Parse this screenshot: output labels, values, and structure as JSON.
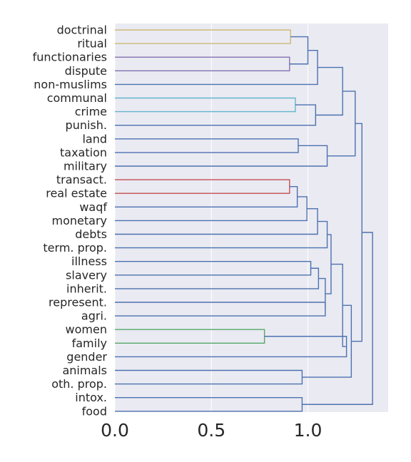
{
  "chart_data": {
    "type": "dendrogram",
    "orientation": "horizontal",
    "title": "",
    "xlabel": "",
    "ylabel": "",
    "xlim": [
      0,
      1.4
    ],
    "xticks": [
      {
        "value": 0.0,
        "label": "0.0"
      },
      {
        "value": 0.5,
        "label": "0.5"
      },
      {
        "value": 1.0,
        "label": "1.0"
      }
    ],
    "grid": true,
    "background": "#eaeaf2",
    "leaves": [
      "doctrinal",
      "ritual",
      "functionaries",
      "dispute",
      "non-muslims",
      "communal",
      "crime",
      "punish.",
      "land",
      "taxation",
      "military",
      "transact.",
      "real estate",
      "waqf",
      "monetary",
      "debts",
      "term. prop.",
      "illness",
      "slavery",
      "inherit.",
      "represent.",
      "agri.",
      "women",
      "family",
      "gender",
      "animals",
      "oth. prop.",
      "intox.",
      "food"
    ],
    "merges": [
      {
        "id": "m_doc_rit",
        "a": "doctrinal",
        "b": "ritual",
        "height": 0.91,
        "color": "#ccb974"
      },
      {
        "id": "m_fun_dis",
        "a": "functionaries",
        "b": "dispute",
        "height": 0.905,
        "color": "#8172b2"
      },
      {
        "id": "m_A",
        "a": "m_doc_rit",
        "b": "m_fun_dis",
        "height": 1.0,
        "color": "#4c72b0"
      },
      {
        "id": "m_B",
        "a": "m_A",
        "b": "non-muslims",
        "height": 1.05,
        "color": "#4c72b0"
      },
      {
        "id": "m_com_cri",
        "a": "communal",
        "b": "crime",
        "height": 0.935,
        "color": "#64b5cd"
      },
      {
        "id": "m_C",
        "a": "m_com_cri",
        "b": "punish.",
        "height": 1.04,
        "color": "#4c72b0"
      },
      {
        "id": "m_D",
        "a": "m_B",
        "b": "m_C",
        "height": 1.18,
        "color": "#4c72b0"
      },
      {
        "id": "m_lan_tax",
        "a": "land",
        "b": "taxation",
        "height": 0.95,
        "color": "#4c72b0"
      },
      {
        "id": "m_E",
        "a": "m_lan_tax",
        "b": "military",
        "height": 1.1,
        "color": "#4c72b0"
      },
      {
        "id": "m_F",
        "a": "m_D",
        "b": "m_E",
        "height": 1.245,
        "color": "#4c72b0"
      },
      {
        "id": "m_tra_rea",
        "a": "transact.",
        "b": "real estate",
        "height": 0.905,
        "color": "#c44e52"
      },
      {
        "id": "m_G",
        "a": "m_tra_rea",
        "b": "waqf",
        "height": 0.945,
        "color": "#4c72b0"
      },
      {
        "id": "m_H",
        "a": "m_G",
        "b": "monetary",
        "height": 0.995,
        "color": "#4c72b0"
      },
      {
        "id": "m_I",
        "a": "m_H",
        "b": "debts",
        "height": 1.05,
        "color": "#4c72b0"
      },
      {
        "id": "m_J",
        "a": "m_I",
        "b": "term. prop.",
        "height": 1.1,
        "color": "#4c72b0"
      },
      {
        "id": "m_ill_sla",
        "a": "illness",
        "b": "slavery",
        "height": 1.015,
        "color": "#4c72b0"
      },
      {
        "id": "m_K",
        "a": "m_ill_sla",
        "b": "inherit.",
        "height": 1.055,
        "color": "#4c72b0"
      },
      {
        "id": "m_rep_agr",
        "a": "represent.",
        "b": "agri.",
        "height": 1.09,
        "color": "#4c72b0"
      },
      {
        "id": "m_L",
        "a": "m_K",
        "b": "m_rep_agr",
        "height": 1.09,
        "color": "#4c72b0"
      },
      {
        "id": "m_M",
        "a": "m_J",
        "b": "m_L",
        "height": 1.12,
        "color": "#4c72b0"
      },
      {
        "id": "m_wom_fam",
        "a": "women",
        "b": "family",
        "height": 0.775,
        "color": "#55a868"
      },
      {
        "id": "m_N",
        "a": "m_wom_fam",
        "b": "gender",
        "height": 1.2,
        "color": "#4c72b0"
      },
      {
        "id": "m_O",
        "a": "m_M",
        "b": "m_N",
        "height": 1.18,
        "color": "#4c72b0"
      },
      {
        "id": "m_ani_oth",
        "a": "animals",
        "b": "oth. prop.",
        "height": 0.97,
        "color": "#4c72b0"
      },
      {
        "id": "m_P",
        "a": "m_O",
        "b": "m_ani_oth",
        "height": 1.225,
        "color": "#4c72b0"
      },
      {
        "id": "m_Q",
        "a": "m_F",
        "b": "m_P",
        "height": 1.28,
        "color": "#4c72b0"
      },
      {
        "id": "m_int_foo",
        "a": "intox.",
        "b": "food",
        "height": 0.97,
        "color": "#4c72b0"
      },
      {
        "id": "m_root",
        "a": "m_Q",
        "b": "m_int_foo",
        "height": 1.335,
        "color": "#4c72b0"
      }
    ]
  }
}
